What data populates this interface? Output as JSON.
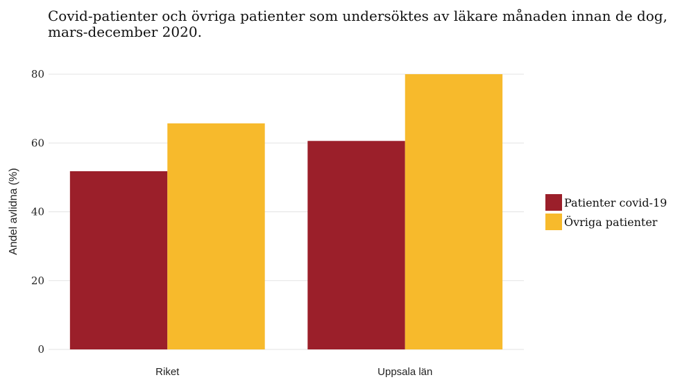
{
  "chart_data": {
    "type": "bar",
    "title_lines": [
      "Covid-patienter och övriga patienter som undersöktes av läkare månaden innan de dog,",
      "mars-december 2020."
    ],
    "categories": [
      "Riket",
      "Uppsala län"
    ],
    "series": [
      {
        "name": "Patienter covid-19",
        "color": "#9B1F2A",
        "values": [
          51.8,
          60.6
        ]
      },
      {
        "name": "Övriga patienter",
        "color": "#F7BA2C",
        "values": [
          65.7,
          80.0
        ]
      }
    ],
    "xlabel": "",
    "ylabel": "Andel avlidna (%)",
    "ylim": [
      0,
      80
    ],
    "yticks": [
      0,
      20,
      40,
      60,
      80
    ],
    "grid": true,
    "legend_position": "right"
  }
}
